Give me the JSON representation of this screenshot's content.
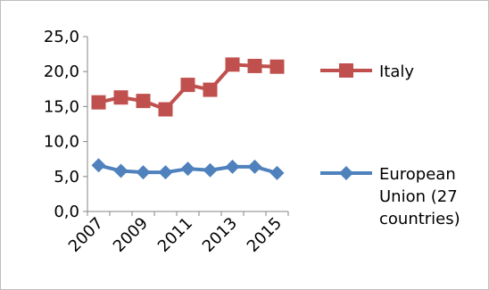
{
  "chart_data": {
    "type": "line",
    "title": "",
    "xlabel": "",
    "ylabel": "",
    "x": [
      "2007",
      "2008",
      "2009",
      "2010",
      "2011",
      "2012",
      "2013",
      "2014",
      "2015"
    ],
    "x_tick_labels": [
      "2007",
      "2009",
      "2011",
      "2013",
      "2015"
    ],
    "y_tick_labels": [
      "0,0",
      "5,0",
      "10,0",
      "15,0",
      "20,0",
      "25,0"
    ],
    "ylim": [
      0,
      25
    ],
    "grid": false,
    "legend_position": "right",
    "series": [
      {
        "name": "Italy",
        "name_lines": [
          "Italy"
        ],
        "color": "#c0504d",
        "marker": "square",
        "values": [
          15.6,
          16.3,
          15.8,
          14.6,
          18.1,
          17.4,
          21.0,
          20.8,
          20.7
        ]
      },
      {
        "name": "European Union (27 countries)",
        "name_lines": [
          "European",
          "Union (27",
          "countries)"
        ],
        "color": "#4f81bd",
        "marker": "diamond",
        "values": [
          6.6,
          5.8,
          5.6,
          5.6,
          6.1,
          5.9,
          6.4,
          6.4,
          5.5
        ]
      }
    ]
  }
}
